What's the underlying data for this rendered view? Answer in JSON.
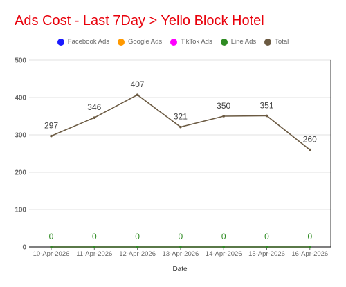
{
  "chart_data": {
    "type": "line",
    "title": "Ads Cost - Last 7Day > Yello Block Hotel",
    "xlabel": "Date",
    "ylabel": "",
    "ylim": [
      0,
      500
    ],
    "yticks": [
      0,
      100,
      200,
      300,
      400,
      500
    ],
    "grid": true,
    "legend_position": "top",
    "categories": [
      "10-Apr-2026",
      "11-Apr-2026",
      "12-Apr-2026",
      "13-Apr-2026",
      "14-Apr-2026",
      "15-Apr-2026",
      "16-Apr-2026"
    ],
    "series": [
      {
        "name": "Facebook Ads",
        "color": "#1a1aff",
        "values": [
          0,
          0,
          0,
          0,
          0,
          0,
          0
        ]
      },
      {
        "name": "Google Ads",
        "color": "#ff9900",
        "values": [
          0,
          0,
          0,
          0,
          0,
          0,
          0
        ]
      },
      {
        "name": "TikTok Ads",
        "color": "#ff00ff",
        "values": [
          0,
          0,
          0,
          0,
          0,
          0,
          0
        ]
      },
      {
        "name": "Line Ads",
        "color": "#2e8b22",
        "values": [
          0,
          0,
          0,
          0,
          0,
          0,
          0
        ]
      },
      {
        "name": "Total",
        "color": "#6b5a42",
        "values": [
          297,
          346,
          407,
          321,
          350,
          351,
          260
        ]
      }
    ]
  }
}
